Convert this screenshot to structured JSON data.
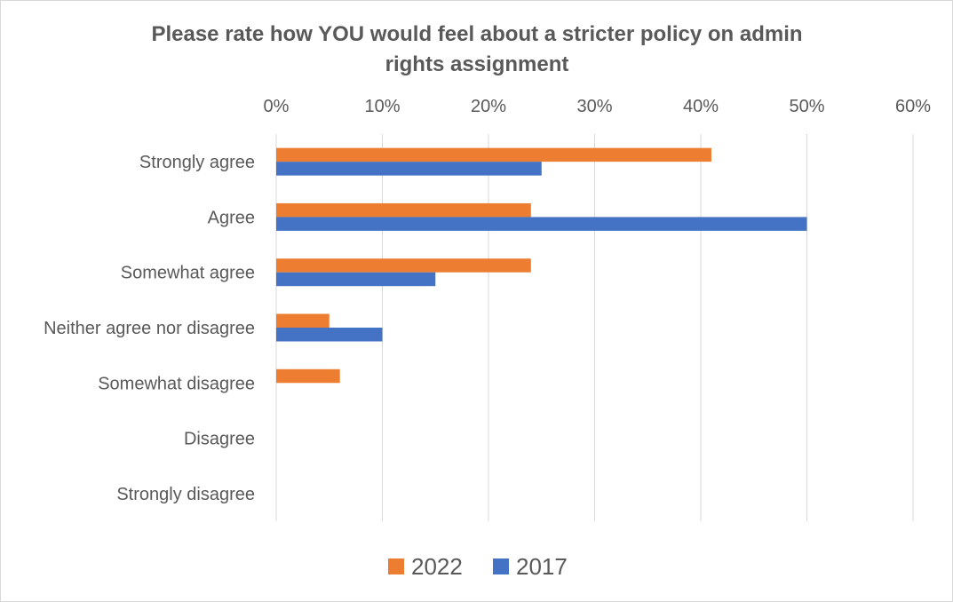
{
  "chart_data": {
    "type": "bar",
    "orientation": "horizontal",
    "title_lines": [
      "Please rate how YOU would feel about a stricter policy on admin",
      "rights assignment"
    ],
    "categories": [
      "Strongly agree",
      "Agree",
      "Somewhat agree",
      "Neither agree nor disagree",
      "Somewhat disagree",
      "Disagree",
      "Strongly disagree"
    ],
    "series": [
      {
        "name": "2022",
        "color": "#ED7D31",
        "values": [
          41,
          24,
          24,
          5,
          6,
          0,
          0
        ]
      },
      {
        "name": "2017",
        "color": "#4472C4",
        "values": [
          25,
          50,
          15,
          10,
          0,
          0,
          0
        ]
      }
    ],
    "xlim": [
      0,
      60
    ],
    "xticks": [
      0,
      10,
      20,
      30,
      40,
      50,
      60
    ],
    "xtick_labels": [
      "0%",
      "10%",
      "20%",
      "30%",
      "40%",
      "50%",
      "60%"
    ],
    "x_axis_position": "top",
    "grid": true,
    "legend_position": "bottom"
  }
}
